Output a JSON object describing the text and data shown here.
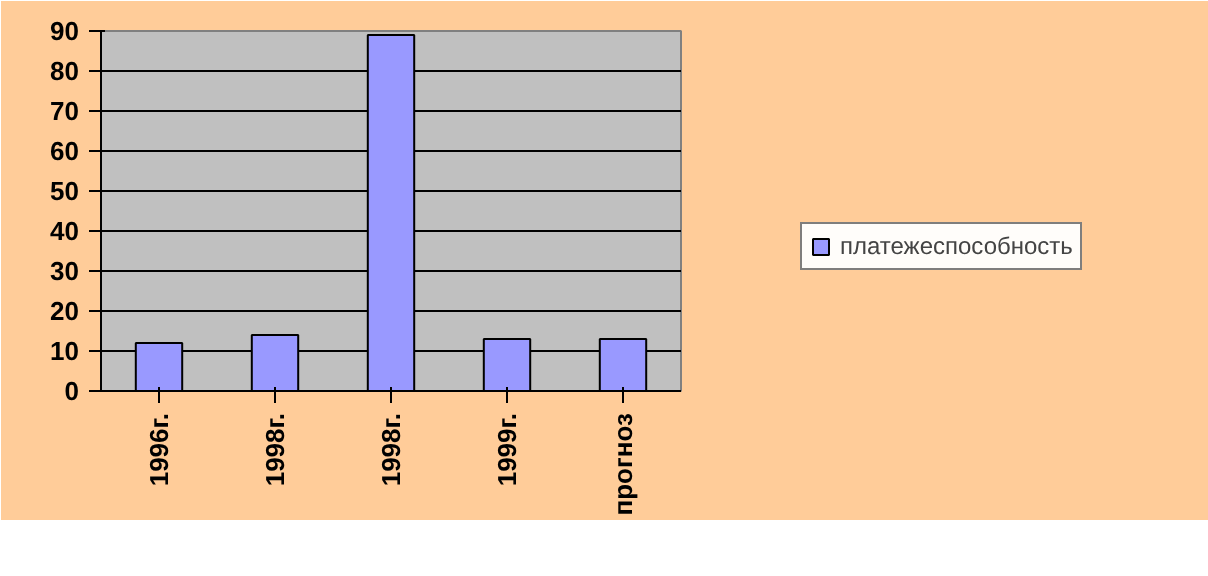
{
  "chart_data": {
    "type": "bar",
    "categories": [
      "1996г.",
      "1998г.",
      "1998г.",
      "1999г.",
      "прогноз"
    ],
    "series": [
      {
        "name": "платежеспособность",
        "color": "#9999ff",
        "values": [
          12,
          14,
          89,
          13,
          13
        ]
      }
    ],
    "ylim": [
      0,
      90
    ],
    "yticks": [
      0,
      10,
      20,
      30,
      40,
      50,
      60,
      70,
      80,
      90
    ],
    "grid": "y",
    "legend": "right"
  }
}
